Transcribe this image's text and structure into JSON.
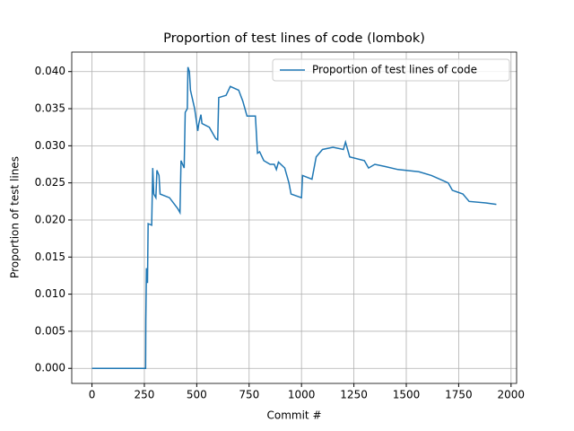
{
  "chart_data": {
    "type": "line",
    "title": "Proportion of test lines of code (lombok)",
    "x_label": "Commit #",
    "y_label": "Proportion of test lines",
    "x": [
      0,
      256,
      257,
      260,
      265,
      268,
      285,
      290,
      295,
      305,
      310,
      320,
      325,
      370,
      410,
      420,
      425,
      440,
      445,
      455,
      458,
      465,
      470,
      490,
      505,
      510,
      520,
      525,
      560,
      590,
      600,
      605,
      640,
      660,
      700,
      720,
      740,
      780,
      790,
      800,
      820,
      850,
      870,
      880,
      890,
      920,
      940,
      950,
      1000,
      1005,
      1050,
      1070,
      1100,
      1150,
      1200,
      1210,
      1230,
      1300,
      1320,
      1350,
      1400,
      1460,
      1560,
      1620,
      1660,
      1700,
      1720,
      1770,
      1800,
      1880,
      1930
    ],
    "series": [
      {
        "name": "Proportion of test lines of code",
        "color": "#1f77b4",
        "values": [
          0,
          0,
          0.0065,
          0.0135,
          0.0115,
          0.0195,
          0.0193,
          0.027,
          0.0235,
          0.023,
          0.0267,
          0.026,
          0.0235,
          0.023,
          0.0215,
          0.021,
          0.028,
          0.027,
          0.0345,
          0.035,
          0.0406,
          0.04,
          0.0375,
          0.035,
          0.032,
          0.033,
          0.0342,
          0.033,
          0.0325,
          0.031,
          0.0308,
          0.0365,
          0.0368,
          0.038,
          0.0375,
          0.036,
          0.034,
          0.034,
          0.029,
          0.0292,
          0.028,
          0.0275,
          0.0275,
          0.0268,
          0.0278,
          0.027,
          0.025,
          0.0235,
          0.023,
          0.026,
          0.0255,
          0.0285,
          0.0295,
          0.0298,
          0.0295,
          0.0305,
          0.0285,
          0.028,
          0.027,
          0.0275,
          0.0272,
          0.0268,
          0.0265,
          0.026,
          0.0255,
          0.025,
          0.024,
          0.0235,
          0.0225,
          0.0223,
          0.0221
        ]
      }
    ],
    "xlim": [
      -96.5,
      2026.5
    ],
    "ylim": [
      -0.00203,
      0.04263
    ],
    "xticks": [
      0,
      250,
      500,
      750,
      1000,
      1250,
      1500,
      1750,
      2000
    ],
    "yticks": [
      {
        "value": 0,
        "label": "0.000"
      },
      {
        "value": 0.005,
        "label": "0.005"
      },
      {
        "value": 0.01,
        "label": "0.010"
      },
      {
        "value": 0.015,
        "label": "0.015"
      },
      {
        "value": 0.02,
        "label": "0.020"
      },
      {
        "value": 0.025,
        "label": "0.025"
      },
      {
        "value": 0.03,
        "label": "0.030"
      },
      {
        "value": 0.035,
        "label": "0.035"
      },
      {
        "value": 0.04,
        "label": "0.040"
      }
    ],
    "grid": true,
    "legend": "upper right"
  }
}
